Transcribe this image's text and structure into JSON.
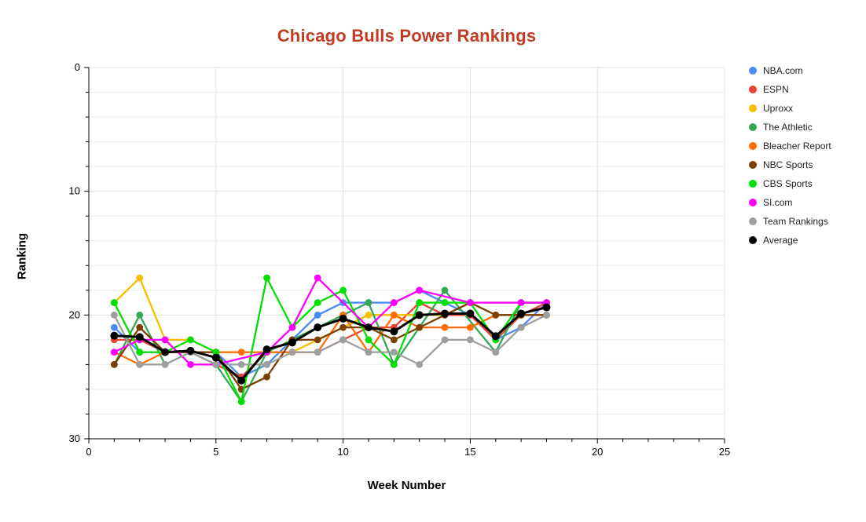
{
  "title": "Chicago Bulls Power Rankings",
  "title_color": "#c23c24",
  "axes": {
    "x": {
      "label": "Week Number",
      "min": 0,
      "max": 25,
      "major_ticks": [
        0,
        5,
        10,
        15,
        20,
        25
      ],
      "minor_tick_step": 1
    },
    "y": {
      "label": "Ranking",
      "min": 0,
      "max": 30,
      "major_ticks": [
        0,
        10,
        20,
        30
      ],
      "minor_tick_step": 2,
      "inverted": true
    }
  },
  "legend": {
    "items": [
      "NBA.com",
      "ESPN",
      "Uproxx",
      "The Athletic",
      "Bleacher Report",
      "NBC Sports",
      "CBS Sports",
      "SI.com",
      "Team Rankings",
      "Average"
    ]
  },
  "colors": {
    "grid_minor": "#ededed",
    "grid_major": "#e0e0e0",
    "axis_line": "#000000",
    "tick_label": "#000000"
  },
  "chart_data": {
    "type": "line",
    "title": "Chicago Bulls Power Rankings",
    "xlabel": "Week Number",
    "ylabel": "Ranking",
    "xlim": [
      0,
      25
    ],
    "ylim": [
      0,
      30
    ],
    "y_axis_inverted": true,
    "grid": true,
    "legend_position": "right",
    "x": [
      1,
      2,
      3,
      4,
      5,
      6,
      7,
      8,
      9,
      10,
      11,
      12,
      13,
      14,
      15,
      16,
      17,
      18
    ],
    "series": [
      {
        "name": "NBA.com",
        "color": "#4a8af4",
        "values": [
          21,
          23,
          23,
          23,
          23,
          25,
          24,
          22,
          20,
          19,
          19,
          19,
          18,
          19,
          20,
          22,
          21,
          19
        ]
      },
      {
        "name": "ESPN",
        "color": "#ea4335",
        "values": [
          22,
          22,
          23,
          23,
          24,
          25,
          23,
          23,
          23,
          22,
          21,
          21,
          19,
          20,
          20,
          22,
          20,
          19
        ]
      },
      {
        "name": "Uproxx",
        "color": "#fbbc04",
        "values": [
          19,
          17,
          22,
          22,
          23,
          null,
          23,
          23,
          null,
          null,
          20,
          20,
          20,
          20,
          19,
          null,
          null,
          null
        ]
      },
      {
        "name": "The Athletic",
        "color": "#34a853",
        "values": [
          24,
          20,
          24,
          23,
          24,
          27,
          23,
          22,
          21,
          20,
          19,
          24,
          null,
          18,
          null,
          23,
          19,
          19
        ]
      },
      {
        "name": "Bleacher Report",
        "color": "#ff6d01",
        "values": [
          23,
          24,
          23,
          23,
          23,
          23,
          23,
          23,
          23,
          20,
          23,
          20,
          21,
          21,
          21,
          20,
          20,
          20
        ]
      },
      {
        "name": "NBC Sports",
        "color": "#7b3f00",
        "values": [
          24,
          21,
          23,
          23,
          23,
          26,
          25,
          22,
          22,
          21,
          21,
          22,
          21,
          20,
          19,
          20,
          20,
          20
        ]
      },
      {
        "name": "CBS Sports",
        "color": "#00e000",
        "values": [
          19,
          23,
          23,
          22,
          23,
          27,
          17,
          21,
          19,
          18,
          22,
          24,
          19,
          19,
          19,
          22,
          19,
          19
        ]
      },
      {
        "name": "SI.com",
        "color": "#ff00ff",
        "values": [
          23,
          22,
          22,
          24,
          24,
          null,
          23,
          21,
          17,
          null,
          21,
          19,
          18,
          null,
          19,
          null,
          19,
          19
        ]
      },
      {
        "name": "Team Rankings",
        "color": "#9e9e9e",
        "values": [
          20,
          24,
          24,
          23,
          24,
          24,
          24,
          23,
          23,
          22,
          23,
          23,
          24,
          22,
          22,
          23,
          21,
          20
        ]
      },
      {
        "name": "Average",
        "color": "#000000",
        "values": [
          21.67,
          21.78,
          23.0,
          22.89,
          23.44,
          25.29,
          22.78,
          22.22,
          21.0,
          20.29,
          21.0,
          21.33,
          20.0,
          19.88,
          19.88,
          21.71,
          19.88,
          19.38
        ]
      }
    ]
  }
}
